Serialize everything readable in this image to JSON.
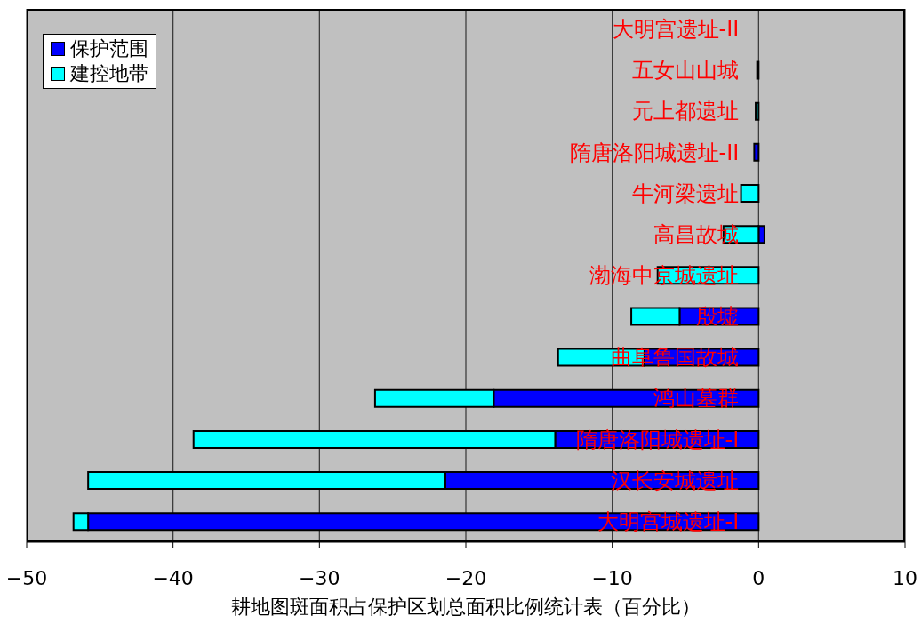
{
  "chart_data": {
    "type": "bar",
    "orientation": "horizontal",
    "stacked": true,
    "xlabel": "耕地图斑面积占保护区划总面积比例统计表（百分比）",
    "categories": [
      "大明宫遗址-II",
      "五女山山城",
      "元上都遗址",
      "隋唐洛阳城遗址-II",
      "牛河梁遗址",
      "高昌故城",
      "渤海中京城遗址",
      "殷墟",
      "曲阜鲁国故城",
      "鸿山墓群",
      "隋唐洛阳城遗址-I",
      "汉长安城遗址",
      "大明宫城遗址-I"
    ],
    "series": [
      {
        "name": "保护范围",
        "color": "#0000ff",
        "values": [
          null,
          -0.1,
          null,
          -0.3,
          null,
          0.4,
          null,
          -5.4,
          -7.8,
          -18.1,
          -13.9,
          -21.4,
          -45.8
        ]
      },
      {
        "name": "建控地带",
        "color": "#00ffff",
        "values": [
          null,
          null,
          -0.2,
          null,
          -1.2,
          -2.4,
          -6.9,
          -3.3,
          -5.9,
          -8.1,
          -24.7,
          -24.4,
          -1.0
        ]
      }
    ],
    "xlim": [
      -50,
      10
    ],
    "xticks": [
      {
        "value": -50,
        "label": "−50"
      },
      {
        "value": -40,
        "label": "−40"
      },
      {
        "value": -30,
        "label": "−30"
      },
      {
        "value": -20,
        "label": "−20"
      },
      {
        "value": -10,
        "label": "−10"
      },
      0,
      10
    ],
    "grid": "x",
    "legend": "top left"
  }
}
